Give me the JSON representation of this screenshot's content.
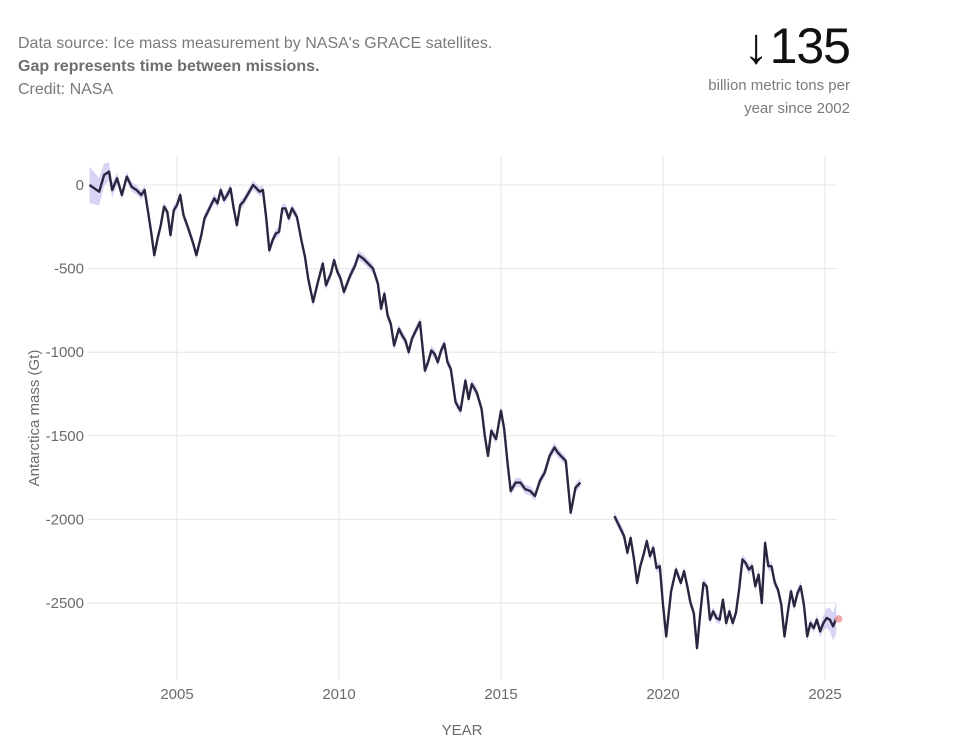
{
  "source": {
    "prefix": "Data source: Ice mass measurement by NASA's GRACE satellites. ",
    "bold": "Gap represents time between missions.",
    "credit": "Credit: NASA"
  },
  "stat": {
    "arrow": "↓",
    "value": "135",
    "caption_line1": "billion metric tons per",
    "caption_line2": "year since 2002"
  },
  "colors": {
    "line": "#2b2540",
    "band": "#cbc6f2",
    "grid": "#e6e6e6",
    "latest_point": "#e89a9a"
  },
  "chart_data": {
    "type": "line",
    "title": "",
    "xlabel": "YEAR",
    "ylabel": "Antarctica mass (Gt)",
    "xlim": [
      2002.2,
      2025.6
    ],
    "ylim": [
      -2950,
      180
    ],
    "grid": true,
    "x_ticks": [
      2005,
      2010,
      2015,
      2020,
      2025
    ],
    "x_tick_labels": [
      "2005",
      "2010",
      "2015",
      "2020",
      "2025"
    ],
    "y_ticks": [
      0,
      -500,
      -1000,
      -1500,
      -2000,
      -2500
    ],
    "y_tick_labels": [
      "0",
      "-500",
      "-1000",
      "-1500",
      "-2000",
      "-2500"
    ],
    "uncertainty_band": true,
    "series": [
      {
        "name": "GRACE",
        "x": [
          2002.3,
          2002.6,
          2002.75,
          2002.9,
          2003.0,
          2003.15,
          2003.3,
          2003.45,
          2003.6,
          2003.75,
          2003.9,
          2004.0,
          2004.1,
          2004.2,
          2004.3,
          2004.4,
          2004.5,
          2004.6,
          2004.7,
          2004.8,
          2004.9,
          2005.0,
          2005.1,
          2005.2,
          2005.35,
          2005.5,
          2005.6,
          2005.75,
          2005.85,
          2005.95,
          2006.05,
          2006.15,
          2006.25,
          2006.35,
          2006.45,
          2006.55,
          2006.65,
          2006.75,
          2006.85,
          2006.95,
          2007.05,
          2007.2,
          2007.35,
          2007.45,
          2007.55,
          2007.65,
          2007.75,
          2007.85,
          2007.95,
          2008.05,
          2008.15,
          2008.25,
          2008.35,
          2008.45,
          2008.55,
          2008.7,
          2008.85,
          2008.95,
          2009.05,
          2009.2,
          2009.35,
          2009.5,
          2009.6,
          2009.75,
          2009.85,
          2009.95,
          2010.05,
          2010.15,
          2010.25,
          2010.35,
          2010.5,
          2010.6,
          2010.75,
          2010.9,
          2011.05,
          2011.2,
          2011.3,
          2011.4,
          2011.5,
          2011.6,
          2011.7,
          2011.85,
          2011.95,
          2012.05,
          2012.15,
          2012.25,
          2012.35,
          2012.5,
          2012.65,
          2012.75,
          2012.85,
          2012.95,
          2013.05,
          2013.15,
          2013.25,
          2013.35,
          2013.45,
          2013.6,
          2013.75,
          2013.9,
          2014.0,
          2014.1,
          2014.25,
          2014.4,
          2014.5,
          2014.6,
          2014.7,
          2014.85,
          2015.0,
          2015.1,
          2015.2,
          2015.3,
          2015.45,
          2015.6,
          2015.75,
          2015.9,
          2016.05,
          2016.2,
          2016.35,
          2016.5,
          2016.65,
          2016.75,
          2016.85,
          2017.0,
          2017.15,
          2017.3,
          2017.45
        ],
        "y": [
          0,
          -40,
          60,
          80,
          -30,
          40,
          -60,
          50,
          -10,
          -30,
          -60,
          -30,
          -150,
          -280,
          -420,
          -320,
          -240,
          -130,
          -160,
          -300,
          -150,
          -120,
          -60,
          -180,
          -260,
          -350,
          -420,
          -300,
          -200,
          -160,
          -120,
          -80,
          -110,
          -30,
          -90,
          -60,
          -20,
          -140,
          -240,
          -120,
          -100,
          -50,
          0,
          -20,
          -40,
          -30,
          -190,
          -390,
          -330,
          -290,
          -280,
          -140,
          -140,
          -200,
          -140,
          -190,
          -340,
          -430,
          -560,
          -700,
          -580,
          -470,
          -600,
          -530,
          -450,
          -520,
          -560,
          -640,
          -590,
          -540,
          -480,
          -420,
          -440,
          -470,
          -500,
          -590,
          -740,
          -650,
          -780,
          -830,
          -960,
          -860,
          -900,
          -930,
          -1000,
          -920,
          -880,
          -820,
          -1110,
          -1060,
          -990,
          -1010,
          -1060,
          -990,
          -950,
          -1060,
          -1100,
          -1300,
          -1350,
          -1170,
          -1280,
          -1190,
          -1240,
          -1340,
          -1500,
          -1620,
          -1470,
          -1520,
          -1350,
          -1460,
          -1660,
          -1830,
          -1780,
          -1780,
          -1820,
          -1830,
          -1860,
          -1770,
          -1720,
          -1620,
          -1570,
          -1600,
          -1620,
          -1650,
          -1960,
          -1810,
          -1780
        ],
        "x2": [
          2018.5,
          2018.65,
          2018.8,
          2018.9,
          2019.0,
          2019.1,
          2019.2,
          2019.3,
          2019.4,
          2019.5,
          2019.6,
          2019.7,
          2019.8,
          2019.9,
          2020.0,
          2020.1,
          2020.25,
          2020.4,
          2020.55,
          2020.65,
          2020.75,
          2020.85,
          2020.95,
          2021.05,
          2021.15,
          2021.25,
          2021.35,
          2021.45,
          2021.55,
          2021.65,
          2021.75,
          2021.85,
          2021.95,
          2022.05,
          2022.15,
          2022.25,
          2022.35,
          2022.45,
          2022.55,
          2022.65,
          2022.75,
          2022.85,
          2022.95,
          2023.05,
          2023.15,
          2023.25,
          2023.35,
          2023.45,
          2023.55,
          2023.65,
          2023.75,
          2023.85,
          2023.95,
          2024.05,
          2024.15,
          2024.25,
          2024.35,
          2024.45,
          2024.55,
          2024.65,
          2024.75,
          2024.85,
          2024.95,
          2025.05,
          2025.15,
          2025.25,
          2025.35
        ],
        "y2": [
          -1980,
          -2040,
          -2100,
          -2200,
          -2110,
          -2230,
          -2380,
          -2280,
          -2210,
          -2130,
          -2220,
          -2170,
          -2290,
          -2280,
          -2510,
          -2700,
          -2430,
          -2300,
          -2380,
          -2310,
          -2400,
          -2500,
          -2560,
          -2770,
          -2560,
          -2380,
          -2400,
          -2600,
          -2550,
          -2590,
          -2600,
          -2480,
          -2620,
          -2550,
          -2620,
          -2560,
          -2420,
          -2240,
          -2260,
          -2300,
          -2280,
          -2400,
          -2330,
          -2500,
          -2140,
          -2280,
          -2280,
          -2380,
          -2420,
          -2510,
          -2700,
          -2560,
          -2430,
          -2520,
          -2440,
          -2400,
          -2510,
          -2700,
          -2620,
          -2650,
          -2600,
          -2670,
          -2620,
          -2590,
          -2600,
          -2640,
          -2590
        ]
      }
    ],
    "latest_point": {
      "x": 2025.42,
      "y": -2595
    }
  }
}
